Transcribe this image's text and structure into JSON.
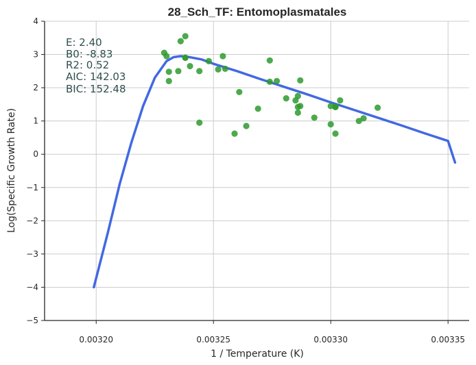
{
  "chart_data": {
    "type": "scatter",
    "title": "28_Sch_TF: Entomoplasmatales",
    "xlabel": "1 / Temperature (K)",
    "ylabel": "Log(Specific Growth Rate)",
    "xlim": [
      0.003178,
      0.003359
    ],
    "ylim": [
      -5,
      4
    ],
    "x_ticks": [
      0.0032,
      0.00325,
      0.0033,
      0.00335
    ],
    "x_tick_labels": [
      "0.00320",
      "0.00325",
      "0.00330",
      "0.00335"
    ],
    "y_ticks": [
      -5,
      -4,
      -3,
      -2,
      -1,
      0,
      1,
      2,
      3,
      4
    ],
    "y_tick_labels": [
      "−5",
      "−4",
      "−3",
      "−2",
      "−1",
      "0",
      "1",
      "2",
      "3",
      "4"
    ],
    "grid": true,
    "point_color": "#2e9a2e",
    "line_color": "#4169e1",
    "stats": [
      "E:  2.40",
      "B0:  -8.83",
      "R2:  0.52",
      "AIC: 142.03",
      "BIC: 152.48"
    ],
    "series": [
      {
        "kind": "points",
        "x": [
          0.003229,
          0.00323,
          0.003231,
          0.003231,
          0.003235,
          0.003236,
          0.003238,
          0.003238,
          0.003238,
          0.00324,
          0.003244,
          0.003244,
          0.003248,
          0.003252,
          0.003254,
          0.003255,
          0.003259,
          0.003261,
          0.003264,
          0.003269,
          0.003274,
          0.003274,
          0.003277,
          0.003281,
          0.003285,
          0.003286,
          0.003286,
          0.003286,
          0.003287,
          0.003287,
          0.003293,
          0.0033,
          0.0033,
          0.003302,
          0.003302,
          0.003302,
          0.003304,
          0.003312,
          0.003314,
          0.00332
        ],
        "y": [
          3.05,
          2.95,
          2.48,
          2.2,
          2.5,
          3.4,
          3.55,
          2.9,
          2.9,
          2.65,
          2.5,
          0.95,
          2.8,
          2.55,
          2.95,
          2.57,
          0.62,
          1.87,
          0.85,
          1.37,
          2.82,
          2.18,
          2.2,
          1.68,
          1.62,
          1.75,
          1.42,
          1.25,
          1.45,
          2.22,
          1.1,
          1.45,
          0.9,
          1.42,
          1.42,
          0.62,
          1.62,
          1.0,
          1.08,
          1.4
        ]
      },
      {
        "kind": "fit",
        "x": [
          0.003199,
          0.003205,
          0.00321,
          0.003215,
          0.00322,
          0.003225,
          0.00323,
          0.003233,
          0.003236,
          0.003239,
          0.003245,
          0.00325,
          0.00326,
          0.00327,
          0.00328,
          0.00329,
          0.0033,
          0.00331,
          0.00332,
          0.00333,
          0.00334,
          0.00335,
          0.003353
        ],
        "y": [
          -4.0,
          -2.35,
          -0.9,
          0.35,
          1.45,
          2.3,
          2.8,
          2.92,
          2.95,
          2.93,
          2.85,
          2.72,
          2.5,
          2.26,
          2.03,
          1.8,
          1.56,
          1.33,
          1.1,
          0.87,
          0.63,
          0.4,
          -0.25
        ]
      }
    ]
  }
}
